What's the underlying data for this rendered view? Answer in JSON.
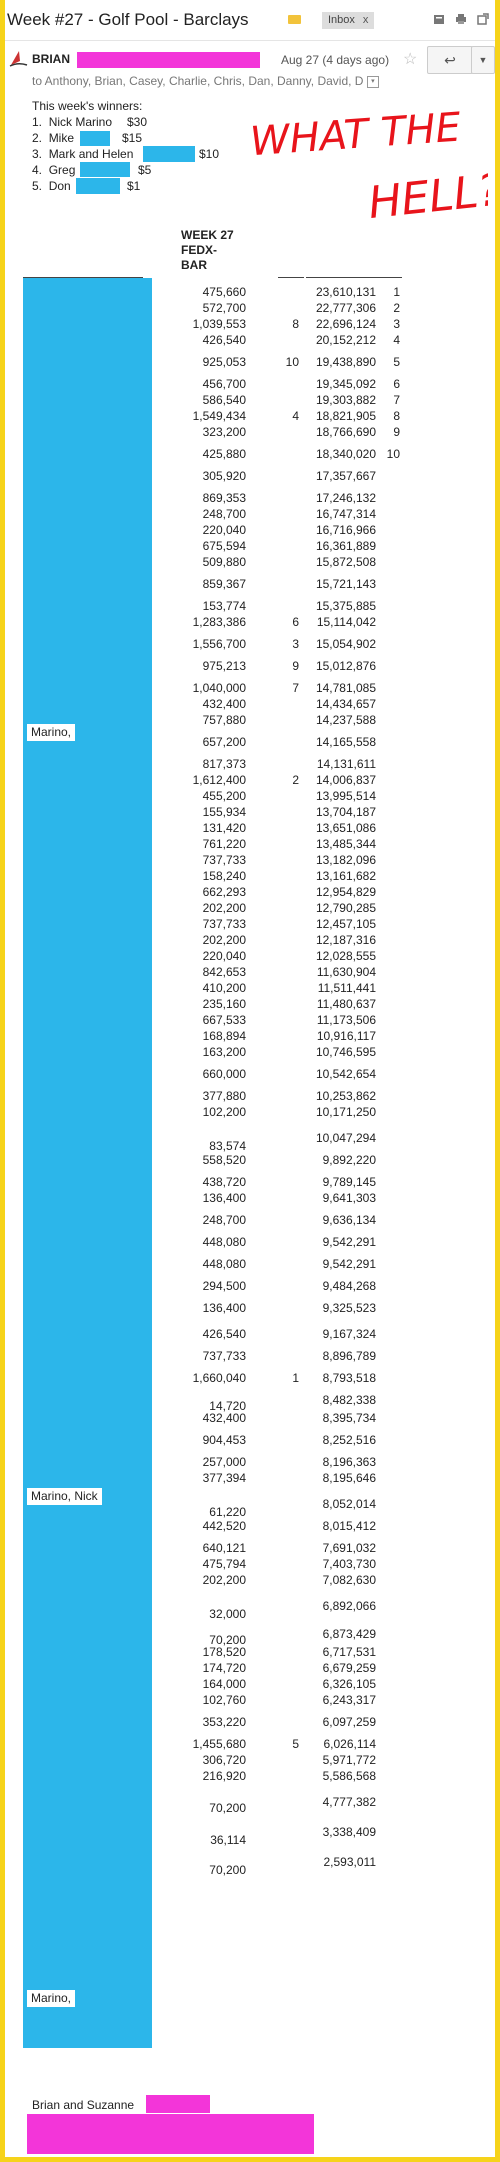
{
  "email": {
    "subject": "Week #27 - Golf Pool - Barclays",
    "inbox_label": "Inbox",
    "inbox_close": "x",
    "sender_name": "BRIAN",
    "date": "Aug 27 (4 days ago)",
    "recipients": "to Anthony, Brian, Casey, Charlie, Chris, Dan, Danny, David, D",
    "winners_title": "This week's winners:",
    "winners": [
      {
        "num": "1.",
        "name": "Nick Marino",
        "amount": "$30"
      },
      {
        "num": "2.",
        "name": "Mike",
        "amount": "$15"
      },
      {
        "num": "3.",
        "name": "Mark and Helen",
        "amount": "$10"
      },
      {
        "num": "4.",
        "name": "Greg",
        "amount": "$5"
      },
      {
        "num": "5.",
        "name": "Don",
        "amount": "$1"
      }
    ],
    "annotation": {
      "line1": "WHAT THE",
      "line2": "HELL?",
      "color": "#e8141b"
    },
    "column_header": [
      "WEEK 27",
      "FEDX-",
      "BAR"
    ],
    "name_chips": [
      "Marino,",
      "Marino, Nick",
      "Marino,"
    ],
    "signature": "Brian and Suzanne",
    "colors": {
      "redaction_pink": "#f335d9",
      "redaction_blue": "#2cb6ea",
      "frame_yellow": "#f6d31a"
    }
  },
  "icons": [
    "tag-icon",
    "print-icon",
    "new-window-icon",
    "star-icon",
    "reply-icon",
    "dropdown-icon",
    "expand-recipients-icon",
    "sender-avatar-icon"
  ],
  "rows": [
    {
      "week": "475,660",
      "wr": "",
      "total": "23,610,131",
      "r": "1"
    },
    {
      "week": "572,700",
      "wr": "",
      "total": "22,777,306",
      "r": "2"
    },
    {
      "week": "1,039,553",
      "wr": "8",
      "total": "22,696,124",
      "r": "3"
    },
    {
      "week": "426,540",
      "wr": "",
      "total": "20,152,212",
      "r": "4"
    },
    {
      "week": "925,053",
      "wr": "10",
      "total": "19,438,890",
      "r": "5"
    },
    {
      "week": "456,700",
      "wr": "",
      "total": "19,345,092",
      "r": "6"
    },
    {
      "week": "586,540",
      "wr": "",
      "total": "19,303,882",
      "r": "7"
    },
    {
      "week": "1,549,434",
      "wr": "4",
      "total": "18,821,905",
      "r": "8"
    },
    {
      "week": "323,200",
      "wr": "",
      "total": "18,766,690",
      "r": "9"
    },
    {
      "week": "425,880",
      "wr": "",
      "total": "18,340,020",
      "r": "10"
    },
    {
      "week": "305,920",
      "wr": "",
      "total": "17,357,667",
      "r": ""
    },
    {
      "week": "869,353",
      "wr": "",
      "total": "17,246,132",
      "r": ""
    },
    {
      "week": "248,700",
      "wr": "",
      "total": "16,747,314",
      "r": ""
    },
    {
      "week": "220,040",
      "wr": "",
      "total": "16,716,966",
      "r": ""
    },
    {
      "week": "675,594",
      "wr": "",
      "total": "16,361,889",
      "r": ""
    },
    {
      "week": "509,880",
      "wr": "",
      "total": "15,872,508",
      "r": ""
    },
    {
      "week": "859,367",
      "wr": "",
      "total": "15,721,143",
      "r": ""
    },
    {
      "week": "153,774",
      "wr": "",
      "total": "15,375,885",
      "r": ""
    },
    {
      "week": "1,283,386",
      "wr": "6",
      "total": "15,114,042",
      "r": ""
    },
    {
      "week": "1,556,700",
      "wr": "3",
      "total": "15,054,902",
      "r": ""
    },
    {
      "week": "975,213",
      "wr": "9",
      "total": "15,012,876",
      "r": ""
    },
    {
      "week": "1,040,000",
      "wr": "7",
      "total": "14,781,085",
      "r": ""
    },
    {
      "week": "432,400",
      "wr": "",
      "total": "14,434,657",
      "r": ""
    },
    {
      "week": "757,880",
      "wr": "",
      "total": "14,237,588",
      "r": ""
    },
    {
      "week": "657,200",
      "wr": "",
      "total": "14,165,558",
      "r": ""
    },
    {
      "week": "817,373",
      "wr": "",
      "total": "14,131,611",
      "r": ""
    },
    {
      "week": "1,612,400",
      "wr": "2",
      "total": "14,006,837",
      "r": ""
    },
    {
      "week": "455,200",
      "wr": "",
      "total": "13,995,514",
      "r": ""
    },
    {
      "week": "155,934",
      "wr": "",
      "total": "13,704,187",
      "r": ""
    },
    {
      "week": "131,420",
      "wr": "",
      "total": "13,651,086",
      "r": ""
    },
    {
      "week": "761,220",
      "wr": "",
      "total": "13,485,344",
      "r": ""
    },
    {
      "week": "737,733",
      "wr": "",
      "total": "13,182,096",
      "r": ""
    },
    {
      "week": "158,240",
      "wr": "",
      "total": "13,161,682",
      "r": ""
    },
    {
      "week": "662,293",
      "wr": "",
      "total": "12,954,829",
      "r": ""
    },
    {
      "week": "202,200",
      "wr": "",
      "total": "12,790,285",
      "r": ""
    },
    {
      "week": "737,733",
      "wr": "",
      "total": "12,457,105",
      "r": ""
    },
    {
      "week": "202,200",
      "wr": "",
      "total": "12,187,316",
      "r": ""
    },
    {
      "week": "220,040",
      "wr": "",
      "total": "12,028,555",
      "r": ""
    },
    {
      "week": "842,653",
      "wr": "",
      "total": "11,630,904",
      "r": ""
    },
    {
      "week": "410,200",
      "wr": "",
      "total": "11,511,441",
      "r": ""
    },
    {
      "week": "235,160",
      "wr": "",
      "total": "11,480,637",
      "r": ""
    },
    {
      "week": "667,533",
      "wr": "",
      "total": "11,173,506",
      "r": ""
    },
    {
      "week": "168,894",
      "wr": "",
      "total": "10,916,117",
      "r": ""
    },
    {
      "week": "163,200",
      "wr": "",
      "total": "10,746,595",
      "r": ""
    },
    {
      "week": "660,000",
      "wr": "",
      "total": "10,542,654",
      "r": ""
    },
    {
      "week": "377,880",
      "wr": "",
      "total": "10,253,862",
      "r": ""
    },
    {
      "week": "102,200",
      "wr": "",
      "total": "10,171,250",
      "r": ""
    },
    {
      "week": "83,574",
      "wr": "",
      "total": "10,047,294",
      "r": ""
    },
    {
      "week": "558,520",
      "wr": "",
      "total": "9,892,220",
      "r": ""
    },
    {
      "week": "438,720",
      "wr": "",
      "total": "9,789,145",
      "r": ""
    },
    {
      "week": "136,400",
      "wr": "",
      "total": "9,641,303",
      "r": ""
    },
    {
      "week": "248,700",
      "wr": "",
      "total": "9,636,134",
      "r": ""
    },
    {
      "week": "448,080",
      "wr": "",
      "total": "9,542,291",
      "r": ""
    },
    {
      "week": "448,080",
      "wr": "",
      "total": "9,542,291",
      "r": ""
    },
    {
      "week": "294,500",
      "wr": "",
      "total": "9,484,268",
      "r": ""
    },
    {
      "week": "136,400",
      "wr": "",
      "total": "9,325,523",
      "r": ""
    },
    {
      "week": "426,540",
      "wr": "",
      "total": "9,167,324",
      "r": ""
    },
    {
      "week": "737,733",
      "wr": "",
      "total": "8,896,789",
      "r": ""
    },
    {
      "week": "1,660,040",
      "wr": "1",
      "total": "8,793,518",
      "r": ""
    },
    {
      "week": "14,720",
      "wr": "",
      "total": "8,482,338",
      "r": ""
    },
    {
      "week": "432,400",
      "wr": "",
      "total": "8,395,734",
      "r": ""
    },
    {
      "week": "904,453",
      "wr": "",
      "total": "8,252,516",
      "r": ""
    },
    {
      "week": "257,000",
      "wr": "",
      "total": "8,196,363",
      "r": ""
    },
    {
      "week": "377,394",
      "wr": "",
      "total": "8,195,646",
      "r": ""
    },
    {
      "week": "61,220",
      "wr": "",
      "total": "8,052,014",
      "r": ""
    },
    {
      "week": "442,520",
      "wr": "",
      "total": "8,015,412",
      "r": ""
    },
    {
      "week": "640,121",
      "wr": "",
      "total": "7,691,032",
      "r": ""
    },
    {
      "week": "475,794",
      "wr": "",
      "total": "7,403,730",
      "r": ""
    },
    {
      "week": "202,200",
      "wr": "",
      "total": "7,082,630",
      "r": ""
    },
    {
      "week": "32,000",
      "wr": "",
      "total": "6,892,066",
      "r": ""
    },
    {
      "week": "70,200",
      "wr": "",
      "total": "6,873,429",
      "r": ""
    },
    {
      "week": "178,520",
      "wr": "",
      "total": "6,717,531",
      "r": ""
    },
    {
      "week": "174,720",
      "wr": "",
      "total": "6,679,259",
      "r": ""
    },
    {
      "week": "164,000",
      "wr": "",
      "total": "6,326,105",
      "r": ""
    },
    {
      "week": "102,760",
      "wr": "",
      "total": "6,243,317",
      "r": ""
    },
    {
      "week": "353,220",
      "wr": "",
      "total": "6,097,259",
      "r": ""
    },
    {
      "week": "1,455,680",
      "wr": "5",
      "total": "6,026,114",
      "r": ""
    },
    {
      "week": "306,720",
      "wr": "",
      "total": "5,971,772",
      "r": ""
    },
    {
      "week": "216,920",
      "wr": "",
      "total": "5,586,568",
      "r": ""
    },
    {
      "week": "70,200",
      "wr": "",
      "total": "4,777,382",
      "r": ""
    },
    {
      "week": "36,114",
      "wr": "",
      "total": "3,338,409",
      "r": ""
    },
    {
      "week": "70,200",
      "wr": "",
      "total": "2,593,011",
      "r": ""
    }
  ]
}
